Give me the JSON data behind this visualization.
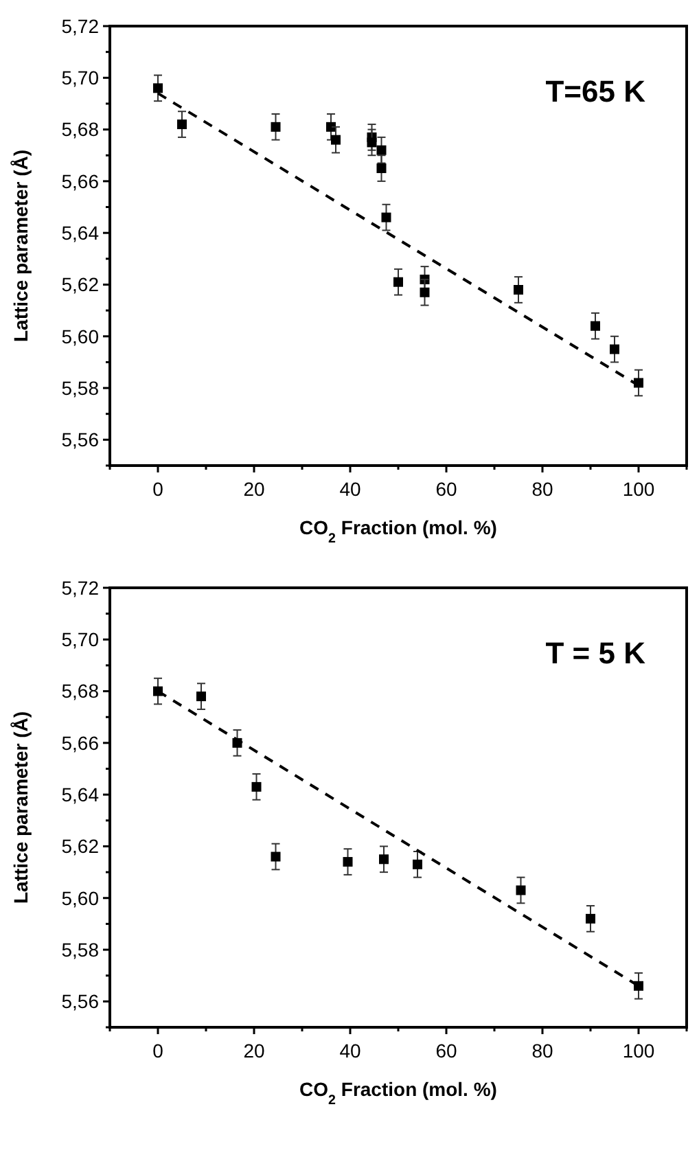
{
  "chart_data": [
    {
      "type": "scatter",
      "xlabel": "CO$_{2}$ Fraction (mol. %)",
      "ylabel": "Lattice parameter (Å)",
      "annotations": [
        "T=65 K"
      ],
      "xlim": [
        -10,
        110
      ],
      "ylim": [
        5.55,
        5.72
      ],
      "xticks": [
        {
          "value": -10,
          "label": null
        },
        0,
        {
          "value": 10,
          "label": null
        },
        20,
        {
          "value": 30,
          "label": null
        },
        40,
        {
          "value": 50,
          "label": null
        },
        60,
        {
          "value": 70,
          "label": null
        },
        80,
        {
          "value": 90,
          "label": null
        },
        100,
        {
          "value": 110,
          "label": null
        }
      ],
      "yticks": [
        {
          "value": 5.55,
          "label": null
        },
        {
          "value": 5.56,
          "label": "5,56"
        },
        {
          "value": 5.57,
          "label": null
        },
        {
          "value": 5.58,
          "label": "5,58"
        },
        {
          "value": 5.59,
          "label": null
        },
        {
          "value": 5.6,
          "label": "5,60"
        },
        {
          "value": 5.61,
          "label": null
        },
        {
          "value": 5.62,
          "label": "5,62"
        },
        {
          "value": 5.63,
          "label": null
        },
        {
          "value": 5.64,
          "label": "5,64"
        },
        {
          "value": 5.65,
          "label": null
        },
        {
          "value": 5.66,
          "label": "5,66"
        },
        {
          "value": 5.67,
          "label": null
        },
        {
          "value": 5.68,
          "label": "5,68"
        },
        {
          "value": 5.69,
          "label": null
        },
        {
          "value": 5.7,
          "label": "5,70"
        },
        {
          "value": 5.71,
          "label": null
        },
        {
          "value": 5.72,
          "label": "5,72"
        }
      ],
      "marker": "square",
      "grid": false,
      "series": [
        {
          "color": "#000000",
          "x": [
            0,
            5,
            24.5,
            36,
            37,
            44.5,
            44.5,
            46.5,
            46.5,
            47.5,
            50,
            55.5,
            55.5,
            75,
            91,
            95,
            100
          ],
          "values": [
            5.696,
            5.682,
            5.681,
            5.681,
            5.676,
            5.677,
            5.675,
            5.672,
            5.665,
            5.646,
            5.621,
            5.622,
            5.617,
            5.618,
            5.604,
            5.595,
            5.582
          ],
          "errors": [
            0.005,
            0.005,
            0.005,
            0.005,
            0.005,
            0.005,
            0.005,
            0.005,
            0.005,
            0.005,
            0.005,
            0.005,
            0.005,
            0.005,
            0.005,
            0.005,
            0.005
          ]
        },
        {
          "type": "line",
          "color": "#000000",
          "line_style": "dashed",
          "marker": "none",
          "x": [
            0,
            100
          ],
          "values": [
            5.694,
            5.581
          ]
        }
      ]
    },
    {
      "type": "scatter",
      "xlabel": "CO$_{2}$ Fraction (mol. %)",
      "ylabel": "Lattice parameter (Å)",
      "annotations": [
        "T = 5 K"
      ],
      "xlim": [
        -10,
        110
      ],
      "ylim": [
        5.55,
        5.72
      ],
      "xticks": [
        {
          "value": -10,
          "label": null
        },
        0,
        {
          "value": 10,
          "label": null
        },
        20,
        {
          "value": 30,
          "label": null
        },
        40,
        {
          "value": 50,
          "label": null
        },
        60,
        {
          "value": 70,
          "label": null
        },
        80,
        {
          "value": 90,
          "label": null
        },
        100,
        {
          "value": 110,
          "label": null
        }
      ],
      "yticks": [
        {
          "value": 5.55,
          "label": null
        },
        {
          "value": 5.56,
          "label": "5,56"
        },
        {
          "value": 5.57,
          "label": null
        },
        {
          "value": 5.58,
          "label": "5,58"
        },
        {
          "value": 5.59,
          "label": null
        },
        {
          "value": 5.6,
          "label": "5,60"
        },
        {
          "value": 5.61,
          "label": null
        },
        {
          "value": 5.62,
          "label": "5,62"
        },
        {
          "value": 5.63,
          "label": null
        },
        {
          "value": 5.64,
          "label": "5,64"
        },
        {
          "value": 5.65,
          "label": null
        },
        {
          "value": 5.66,
          "label": "5,66"
        },
        {
          "value": 5.67,
          "label": null
        },
        {
          "value": 5.68,
          "label": "5,68"
        },
        {
          "value": 5.69,
          "label": null
        },
        {
          "value": 5.7,
          "label": "5,70"
        },
        {
          "value": 5.71,
          "label": null
        },
        {
          "value": 5.72,
          "label": "5,72"
        }
      ],
      "marker": "square",
      "grid": false,
      "series": [
        {
          "color": "#000000",
          "x": [
            0,
            9,
            16.5,
            20.5,
            24.5,
            39.5,
            47,
            54,
            75.5,
            90,
            100
          ],
          "values": [
            5.68,
            5.678,
            5.66,
            5.643,
            5.616,
            5.614,
            5.615,
            5.613,
            5.603,
            5.592,
            5.566
          ],
          "errors": [
            0.005,
            0.005,
            0.005,
            0.005,
            0.005,
            0.005,
            0.005,
            0.005,
            0.005,
            0.005,
            0.005
          ]
        },
        {
          "type": "line",
          "color": "#000000",
          "line_style": "dashed",
          "marker": "none",
          "x": [
            0,
            100
          ],
          "values": [
            5.68,
            5.566
          ]
        }
      ]
    }
  ]
}
